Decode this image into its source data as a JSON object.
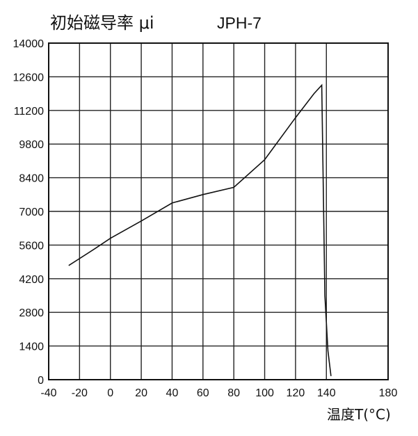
{
  "chart_data": {
    "type": "line",
    "title": "初始磁导率 μi",
    "subtitle": "JPH-7",
    "xlabel": "温度T(°C)",
    "ylabel": "",
    "xlim": [
      -40,
      180
    ],
    "ylim": [
      0,
      14000
    ],
    "x_ticks": [
      -40,
      -20,
      0,
      20,
      40,
      60,
      80,
      100,
      120,
      140,
      180
    ],
    "y_ticks": [
      0,
      1400,
      2800,
      4200,
      5600,
      7000,
      8400,
      9800,
      11200,
      12600,
      14000
    ],
    "grid": true,
    "series": [
      {
        "x": [
          -27,
          -10,
          0,
          20,
          40,
          60,
          80,
          100,
          120,
          132,
          137,
          138,
          139,
          141,
          143
        ],
        "y": [
          4750,
          5450,
          5880,
          6600,
          7350,
          7700,
          8000,
          9150,
          10900,
          11900,
          12250,
          8000,
          3500,
          1200,
          150
        ]
      }
    ]
  }
}
